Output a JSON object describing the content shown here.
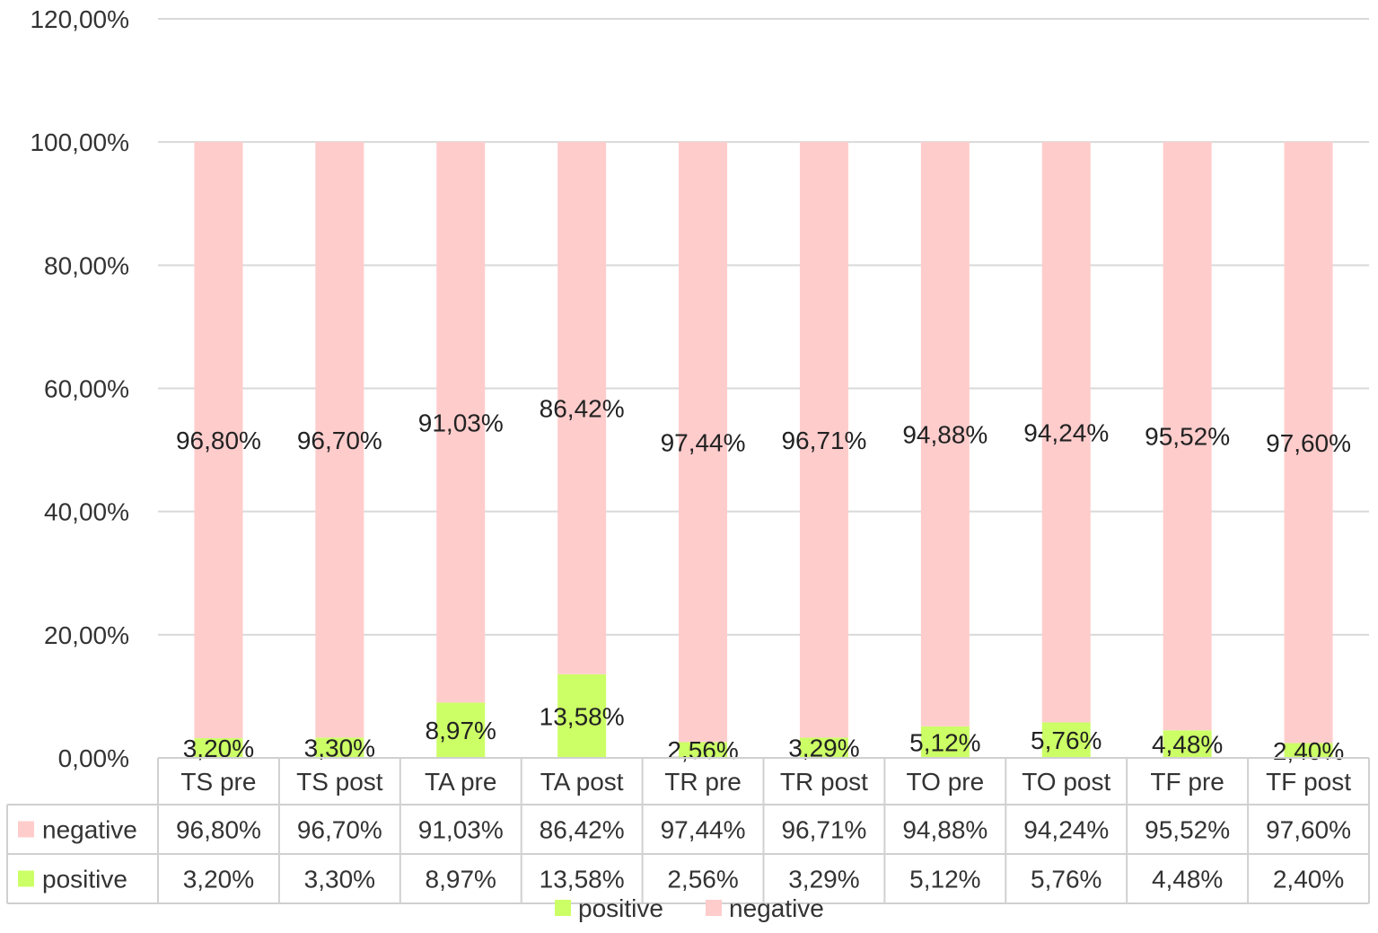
{
  "chart_data": {
    "type": "bar",
    "stacked": true,
    "categories": [
      "TS pre",
      "TS post",
      "TA pre",
      "TA post",
      "TR pre",
      "TR post",
      "TO pre",
      "TO post",
      "TF pre",
      "TF post"
    ],
    "series": [
      {
        "name": "positive",
        "color": "#ccff66",
        "values": [
          3.2,
          3.3,
          8.97,
          13.58,
          2.56,
          3.29,
          5.12,
          5.76,
          4.48,
          2.4
        ],
        "labels": [
          "3,20%",
          "3,30%",
          "8,97%",
          "13,58%",
          "2,56%",
          "3,29%",
          "5,12%",
          "5,76%",
          "4,48%",
          "2,40%"
        ]
      },
      {
        "name": "negative",
        "color": "#ffcccc",
        "values": [
          96.8,
          96.7,
          91.03,
          86.42,
          97.44,
          96.71,
          94.88,
          94.24,
          95.52,
          97.6
        ],
        "labels": [
          "96,80%",
          "96,70%",
          "91,03%",
          "86,42%",
          "97,44%",
          "96,71%",
          "94,88%",
          "94,24%",
          "95,52%",
          "97,60%"
        ]
      }
    ],
    "ylim": [
      0,
      120
    ],
    "y_ticks": [
      0,
      20,
      40,
      60,
      80,
      100,
      120
    ],
    "y_tick_labels": [
      "0,00%",
      "20,00%",
      "40,00%",
      "60,00%",
      "80,00%",
      "100,00%",
      "120,00%"
    ],
    "grid": true,
    "data_table": {
      "rows": [
        {
          "series": "negative",
          "label": "negative"
        },
        {
          "series": "positive",
          "label": "positive"
        }
      ]
    },
    "legend": {
      "position": "bottom",
      "entries": [
        "positive",
        "negative"
      ]
    },
    "gridline_color": "#d9d9d9",
    "text_color": "#333333"
  }
}
